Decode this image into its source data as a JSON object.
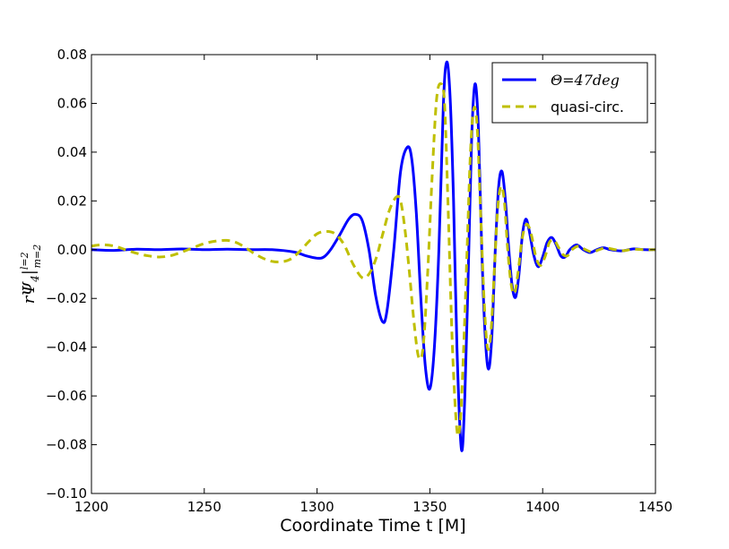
{
  "chart_data": {
    "type": "line",
    "xlabel": "Coordinate Time t [M]",
    "ylabel": "rΨ4|l=2,m=2",
    "xlim": [
      1200,
      1450
    ],
    "ylim": [
      -0.1,
      0.08
    ],
    "xticks": [
      1200,
      1250,
      1300,
      1350,
      1400,
      1450
    ],
    "xtick_labels": [
      "1200",
      "1250",
      "1300",
      "1350",
      "1400",
      "1450"
    ],
    "yticks": [
      0.08,
      0.06,
      0.04,
      0.02,
      0.0,
      -0.02,
      -0.04,
      -0.06,
      -0.08,
      -0.1
    ],
    "ytick_labels": [
      "0.08",
      "0.06",
      "0.04",
      "0.02",
      "0.00",
      "−0.02",
      "−0.04",
      "−0.06",
      "−0.08",
      "−0.10"
    ],
    "grid": false,
    "legend_position": "top-right",
    "series": [
      {
        "name": "Θ=47deg",
        "color": "#0000ff",
        "style": "solid",
        "points": [
          [
            1200,
            0.0
          ],
          [
            1210,
            -0.0003
          ],
          [
            1220,
            0.0002
          ],
          [
            1230,
            0.0
          ],
          [
            1240,
            0.0003
          ],
          [
            1250,
            0.0
          ],
          [
            1260,
            0.0002
          ],
          [
            1270,
            0.0
          ],
          [
            1280,
            0.0
          ],
          [
            1290,
            -0.001
          ],
          [
            1295,
            -0.0025
          ],
          [
            1300,
            -0.0035
          ],
          [
            1303,
            -0.003
          ],
          [
            1306,
            0.0
          ],
          [
            1310,
            0.006
          ],
          [
            1314,
            0.0125
          ],
          [
            1317,
            0.0145
          ],
          [
            1320,
            0.012
          ],
          [
            1323,
            0.0
          ],
          [
            1326,
            -0.019
          ],
          [
            1329,
            -0.0295
          ],
          [
            1331,
            -0.025
          ],
          [
            1334,
            0.0
          ],
          [
            1337,
            0.032
          ],
          [
            1340,
            0.042
          ],
          [
            1342,
            0.037
          ],
          [
            1344,
            0.015
          ],
          [
            1346,
            -0.02
          ],
          [
            1348,
            -0.048
          ],
          [
            1350,
            -0.057
          ],
          [
            1352,
            -0.04
          ],
          [
            1354,
            0.0
          ],
          [
            1356,
            0.06
          ],
          [
            1357.5,
            0.077
          ],
          [
            1359,
            0.062
          ],
          [
            1360.5,
            0.02
          ],
          [
            1362,
            -0.04
          ],
          [
            1364,
            -0.082
          ],
          [
            1365.5,
            -0.06
          ],
          [
            1367,
            -0.01
          ],
          [
            1368.5,
            0.045
          ],
          [
            1370,
            0.068
          ],
          [
            1371.5,
            0.05
          ],
          [
            1373,
            0.0
          ],
          [
            1374.5,
            -0.035
          ],
          [
            1376,
            -0.049
          ],
          [
            1377.5,
            -0.035
          ],
          [
            1379,
            0.0
          ],
          [
            1380.5,
            0.026
          ],
          [
            1382,
            0.032
          ],
          [
            1383.5,
            0.02
          ],
          [
            1385,
            0.0
          ],
          [
            1386.5,
            -0.015
          ],
          [
            1388,
            -0.0195
          ],
          [
            1389.5,
            -0.01
          ],
          [
            1391,
            0.006
          ],
          [
            1392.5,
            0.0125
          ],
          [
            1394,
            0.008
          ],
          [
            1396,
            -0.002
          ],
          [
            1398,
            -0.007
          ],
          [
            1400,
            -0.003
          ],
          [
            1402,
            0.003
          ],
          [
            1404,
            0.005
          ],
          [
            1406,
            0.002
          ],
          [
            1408,
            -0.0025
          ],
          [
            1410,
            -0.003
          ],
          [
            1412,
            0.0
          ],
          [
            1415,
            0.002
          ],
          [
            1418,
            0.0
          ],
          [
            1421,
            -0.0012
          ],
          [
            1424,
            0.0
          ],
          [
            1427,
            0.0008
          ],
          [
            1430,
            0.0
          ],
          [
            1435,
            -0.0005
          ],
          [
            1440,
            0.0003
          ],
          [
            1445,
            0.0
          ],
          [
            1450,
            0.0
          ]
        ]
      },
      {
        "name": "quasi-circ.",
        "color": "#bfbf00",
        "style": "dashed",
        "points": [
          [
            1200,
            0.0015
          ],
          [
            1205,
            0.002
          ],
          [
            1210,
            0.0015
          ],
          [
            1215,
            0.0
          ],
          [
            1220,
            -0.0015
          ],
          [
            1225,
            -0.0025
          ],
          [
            1230,
            -0.003
          ],
          [
            1235,
            -0.0025
          ],
          [
            1240,
            -0.001
          ],
          [
            1245,
            0.0008
          ],
          [
            1250,
            0.0025
          ],
          [
            1255,
            0.0035
          ],
          [
            1260,
            0.0038
          ],
          [
            1264,
            0.003
          ],
          [
            1268,
            0.001
          ],
          [
            1272,
            -0.0015
          ],
          [
            1276,
            -0.0035
          ],
          [
            1280,
            -0.0048
          ],
          [
            1284,
            -0.005
          ],
          [
            1288,
            -0.004
          ],
          [
            1292,
            -0.001
          ],
          [
            1296,
            0.003
          ],
          [
            1300,
            0.0065
          ],
          [
            1304,
            0.0075
          ],
          [
            1308,
            0.0065
          ],
          [
            1312,
            0.002
          ],
          [
            1316,
            -0.006
          ],
          [
            1320,
            -0.0115
          ],
          [
            1323,
            -0.01
          ],
          [
            1326,
            -0.004
          ],
          [
            1329,
            0.006
          ],
          [
            1332,
            0.016
          ],
          [
            1335,
            0.0215
          ],
          [
            1337,
            0.02
          ],
          [
            1339,
            0.008
          ],
          [
            1341,
            -0.01
          ],
          [
            1343,
            -0.03
          ],
          [
            1345,
            -0.044
          ],
          [
            1347,
            -0.04
          ],
          [
            1349,
            -0.01
          ],
          [
            1351,
            0.03
          ],
          [
            1353,
            0.062
          ],
          [
            1355,
            0.068
          ],
          [
            1356.5,
            0.06
          ],
          [
            1358,
            0.02
          ],
          [
            1360,
            -0.04
          ],
          [
            1362,
            -0.074
          ],
          [
            1363.5,
            -0.07
          ],
          [
            1365,
            -0.04
          ],
          [
            1366.5,
            0.0
          ],
          [
            1368,
            0.04
          ],
          [
            1369.5,
            0.058
          ],
          [
            1371,
            0.05
          ],
          [
            1372.5,
            0.015
          ],
          [
            1374,
            -0.02
          ],
          [
            1375.5,
            -0.04
          ],
          [
            1377,
            -0.035
          ],
          [
            1378.5,
            -0.01
          ],
          [
            1380,
            0.016
          ],
          [
            1381.5,
            0.026
          ],
          [
            1383,
            0.02
          ],
          [
            1384.5,
            0.0
          ],
          [
            1386,
            -0.014
          ],
          [
            1387.5,
            -0.018
          ],
          [
            1389,
            -0.01
          ],
          [
            1391,
            0.005
          ],
          [
            1393,
            0.0105
          ],
          [
            1395,
            0.006
          ],
          [
            1397,
            -0.003
          ],
          [
            1399,
            -0.0065
          ],
          [
            1401,
            -0.003
          ],
          [
            1403,
            0.003
          ],
          [
            1405,
            0.004
          ],
          [
            1407,
            0.001
          ],
          [
            1409,
            -0.002
          ],
          [
            1411,
            -0.0025
          ],
          [
            1413,
            0.0
          ],
          [
            1416,
            0.0015
          ],
          [
            1419,
            0.0
          ],
          [
            1422,
            -0.001
          ],
          [
            1425,
            0.0
          ],
          [
            1428,
            0.0007
          ],
          [
            1432,
            0.0
          ],
          [
            1436,
            -0.0004
          ],
          [
            1440,
            0.0002
          ],
          [
            1445,
            0.0
          ],
          [
            1450,
            0.0
          ]
        ]
      }
    ]
  }
}
